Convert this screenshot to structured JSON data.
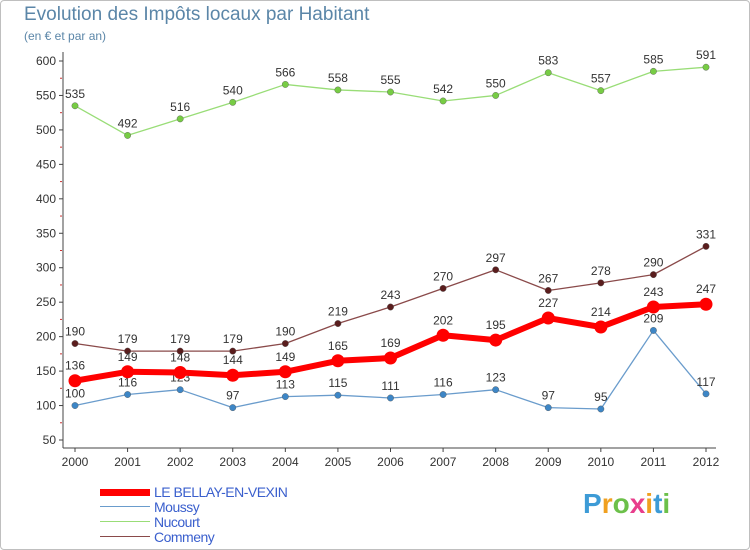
{
  "title": "Evolution des Impôts locaux par Habitant",
  "subtitle": "(en € et par an)",
  "chart_data": {
    "type": "line",
    "x": [
      2000,
      2001,
      2002,
      2003,
      2004,
      2005,
      2006,
      2007,
      2008,
      2009,
      2010,
      2011,
      2012
    ],
    "ylim": [
      50,
      600
    ],
    "yticks": [
      50,
      100,
      150,
      200,
      250,
      300,
      350,
      400,
      450,
      500,
      550,
      600
    ],
    "grid": false,
    "legend_position": "bottom-left",
    "series": [
      {
        "name": "LE BELLAY-EN-VEXIN",
        "color": "#ff0000",
        "marker": "#ff0000",
        "values": [
          136,
          149,
          148,
          144,
          149,
          165,
          169,
          202,
          195,
          227,
          214,
          243,
          247
        ]
      },
      {
        "name": "Moussy",
        "color": "#6a9ccc",
        "marker": "#3d86c6",
        "values": [
          100,
          116,
          123,
          97,
          113,
          115,
          111,
          116,
          123,
          97,
          95,
          209,
          117
        ]
      },
      {
        "name": "Nucourt",
        "color": "#99dd77",
        "marker": "#77cc44",
        "values": [
          535,
          492,
          516,
          540,
          566,
          558,
          555,
          542,
          550,
          583,
          557,
          585,
          591
        ]
      },
      {
        "name": "Commeny",
        "color": "#8a4a4a",
        "marker": "#5a1d1d",
        "values": [
          190,
          179,
          179,
          179,
          190,
          219,
          243,
          270,
          297,
          267,
          278,
          290,
          331
        ]
      }
    ]
  },
  "logo": {
    "letters": [
      "P",
      "r",
      "o",
      "x",
      "i",
      "t",
      "i"
    ],
    "colors": [
      "#3d9bd6",
      "#f0a020",
      "#6cc04a",
      "#e83e8c",
      "#f0a020",
      "#3d9bd6",
      "#6cc04a"
    ]
  }
}
